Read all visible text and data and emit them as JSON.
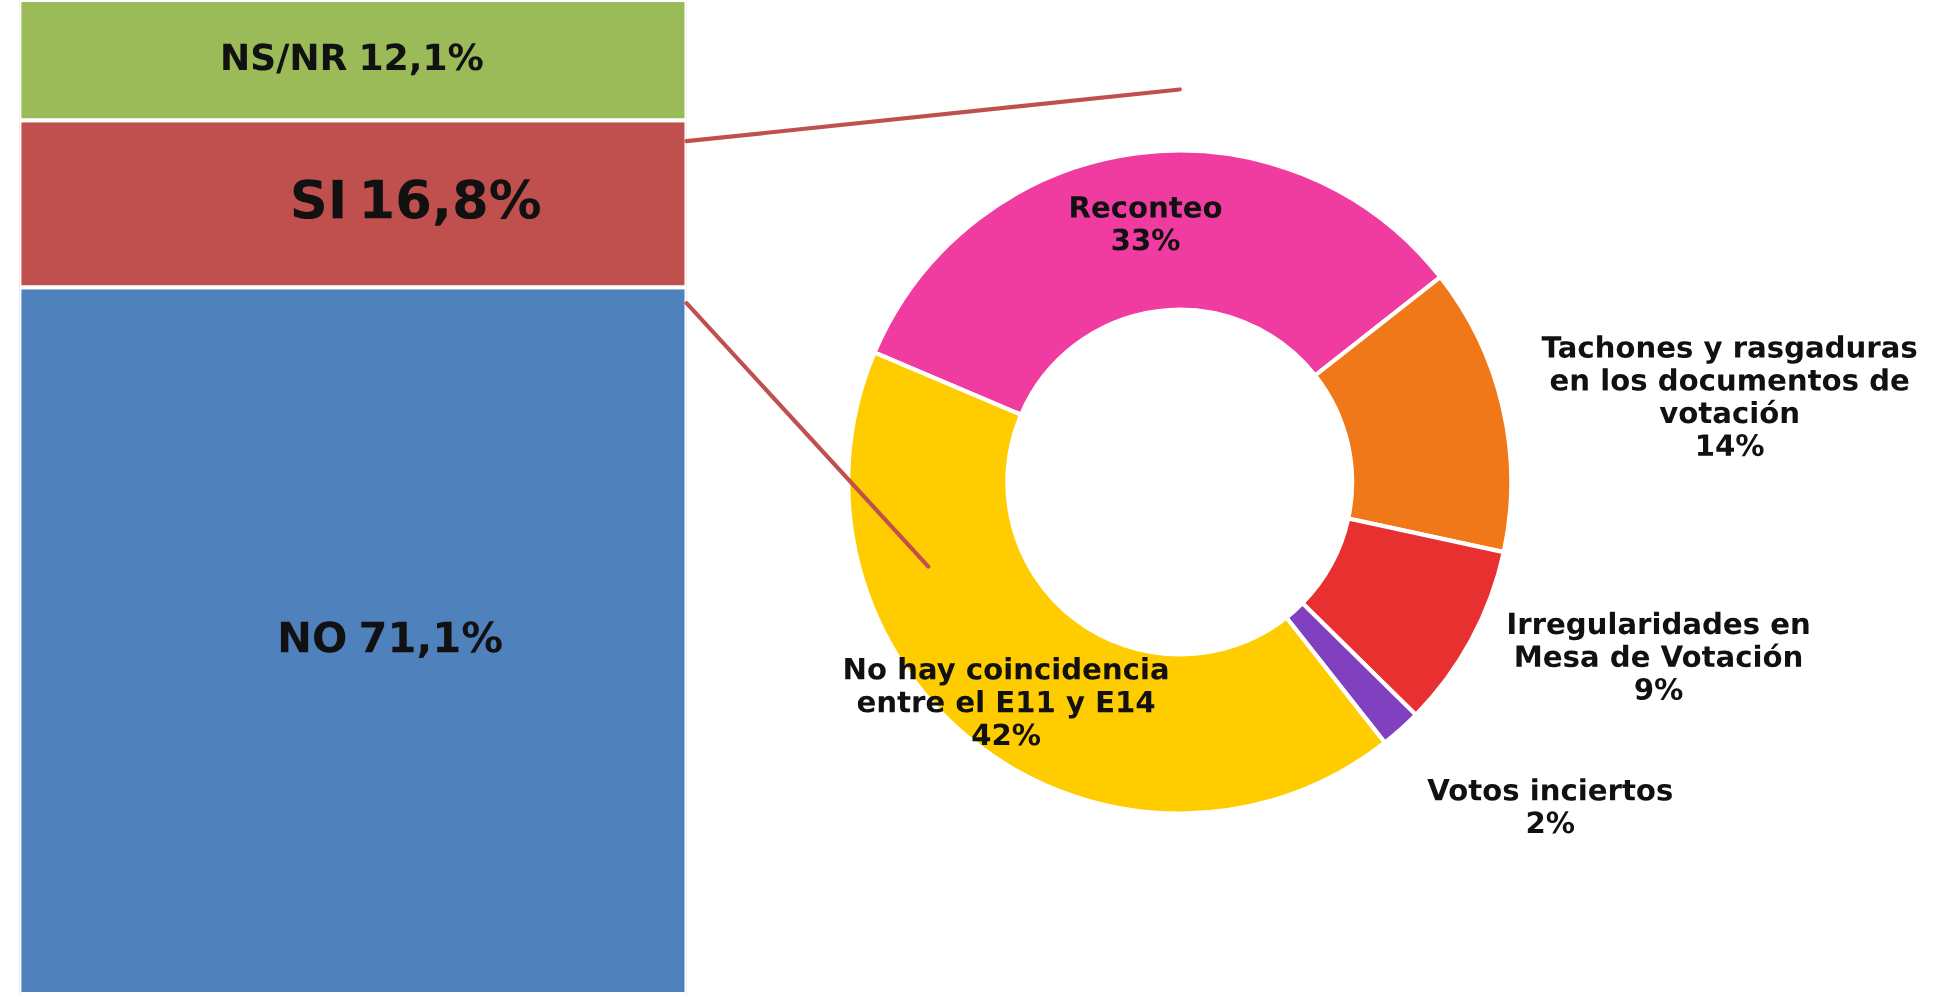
{
  "chart_data": [
    {
      "type": "bar",
      "stacked": true,
      "categories": [
        null
      ],
      "series": [
        {
          "name": "NO",
          "color": "#4f81bd",
          "values": [
            71.1
          ],
          "value_labels": [
            "71,1%"
          ]
        },
        {
          "name": "SI",
          "color": "#c0504d",
          "values": [
            16.8
          ],
          "value_labels": [
            "16,8%"
          ]
        },
        {
          "name": "NS/NR",
          "color": "#9bbb59",
          "values": [
            12.1
          ],
          "value_labels": [
            "12,1%"
          ]
        }
      ],
      "relative": false,
      "legend": false
    },
    {
      "type": "donut",
      "categories": [
        "Reconteo",
        "Tachones y rasgaduras\nen los documentos de\nvotación",
        "Irregularidades en\nMesa de Votación",
        "Votos inciertos",
        "No hay coincidencia\nentre el E11 y E14"
      ],
      "values": [
        33,
        14,
        9,
        2,
        42
      ],
      "colors": [
        "#f03ca0",
        "#f07818",
        "#e83030",
        "#8040c0",
        "#ffcc00"
      ],
      "value_labels": [
        "33%",
        "14%",
        "9%",
        "2%",
        "42%"
      ],
      "legend": false
    }
  ]
}
